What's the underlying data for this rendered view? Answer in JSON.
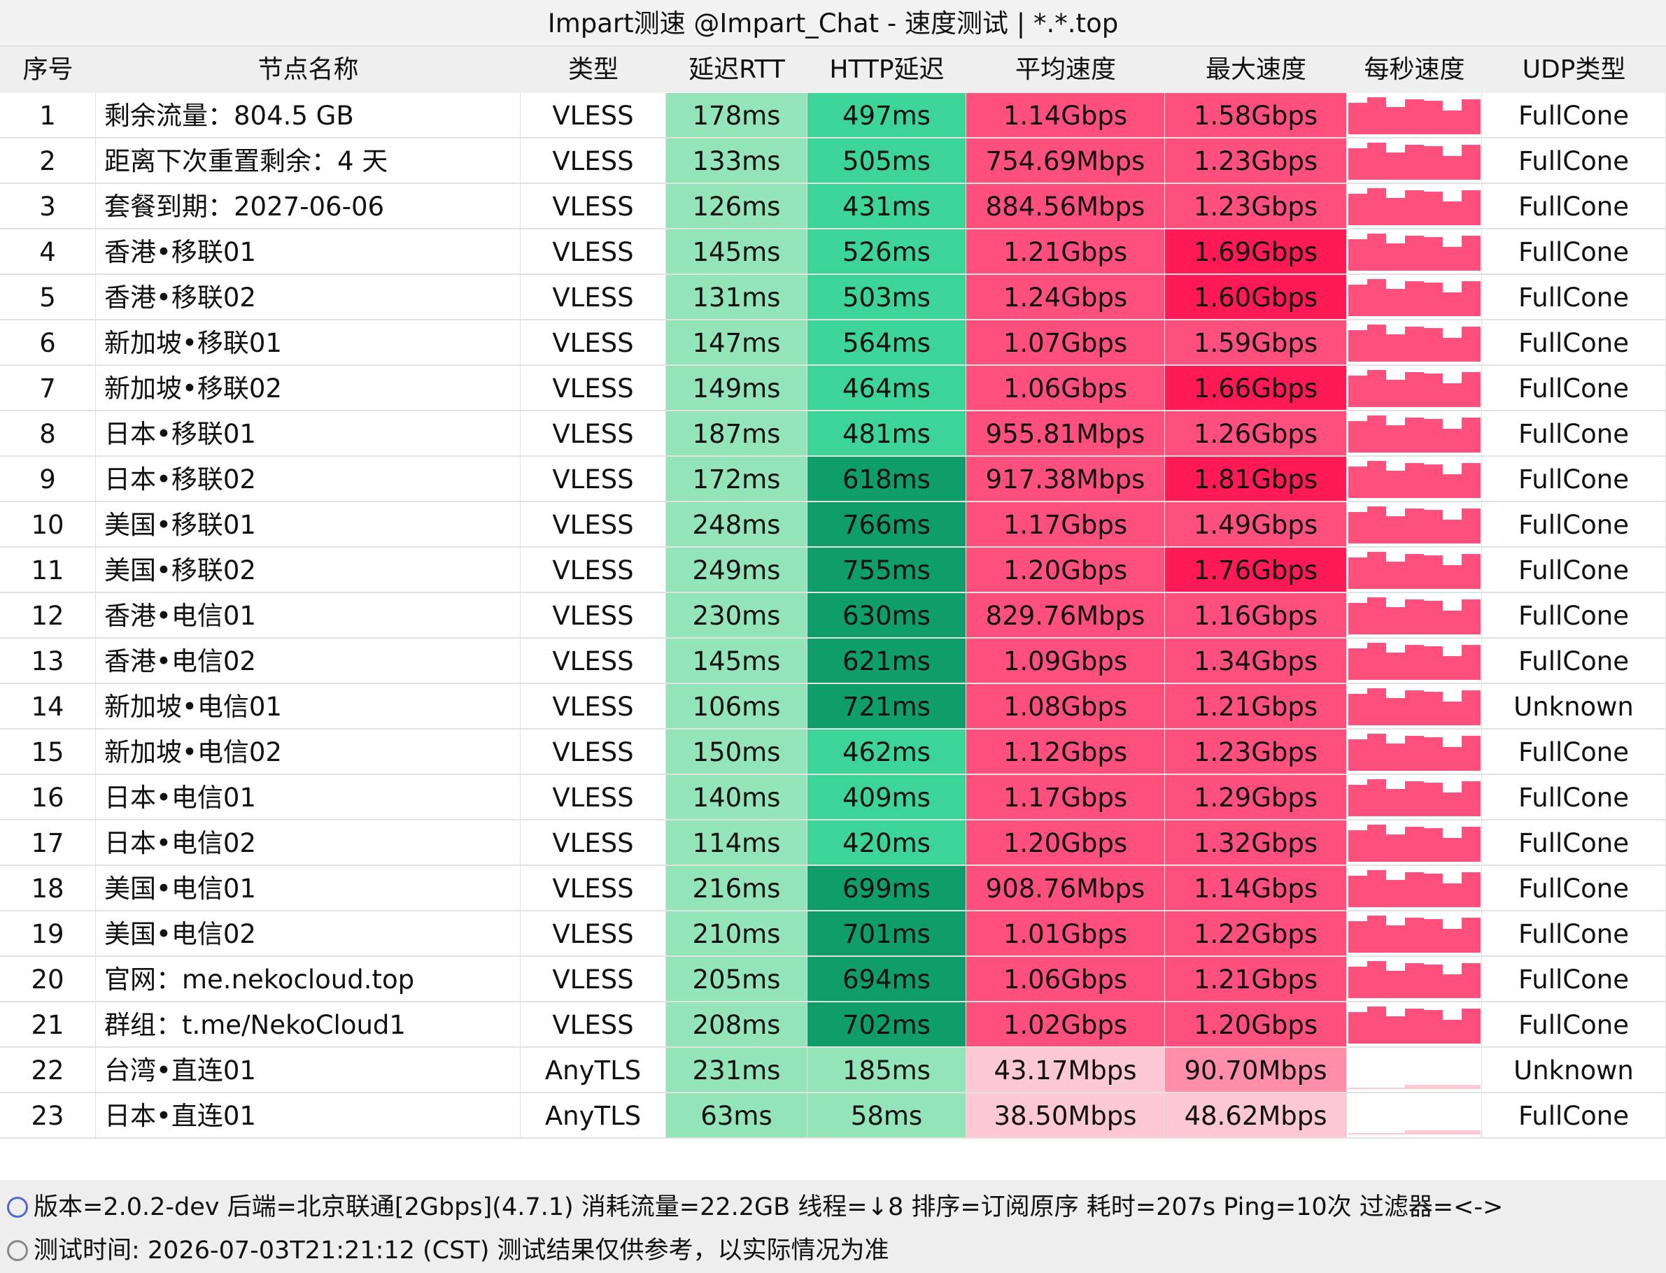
{
  "header": {
    "title": "Impart测速 @Impart_Chat - 速度测试 | *.*.top"
  },
  "table": {
    "columns": [
      "序号",
      "节点名称",
      "类型",
      "延迟RTT",
      "HTTP延迟",
      "平均速度",
      "最大速度",
      "每秒速度",
      "UDP类型"
    ],
    "rows": [
      {
        "cells": [
          "1",
          "剩余流量：804.5 GB",
          "VLESS",
          "178ms",
          "497ms",
          "1.14Gbps",
          "1.58Gbps",
          "FullCone"
        ],
        "fills": [
          "#94e4b9",
          "#3cd597",
          "#ff4f7d",
          "#ff4f7d"
        ]
      },
      {
        "cells": [
          "2",
          "距离下次重置剩余：4 天",
          "VLESS",
          "133ms",
          "505ms",
          "754.69Mbps",
          "1.23Gbps",
          "FullCone"
        ],
        "fills": [
          "#94e4b9",
          "#3cd597",
          "#ff4f7d",
          "#ff4f7d"
        ]
      },
      {
        "cells": [
          "3",
          "套餐到期：2027-06-06",
          "VLESS",
          "126ms",
          "431ms",
          "884.56Mbps",
          "1.23Gbps",
          "FullCone"
        ],
        "fills": [
          "#94e4b9",
          "#3cd597",
          "#ff4f7d",
          "#ff4f7d"
        ]
      },
      {
        "cells": [
          "4",
          "香港•移联01",
          "VLESS",
          "145ms",
          "526ms",
          "1.21Gbps",
          "1.69Gbps",
          "FullCone"
        ],
        "fills": [
          "#94e4b9",
          "#3cd597",
          "#ff4f7d",
          "#ff1a56"
        ]
      },
      {
        "cells": [
          "5",
          "香港•移联02",
          "VLESS",
          "131ms",
          "503ms",
          "1.24Gbps",
          "1.60Gbps",
          "FullCone"
        ],
        "fills": [
          "#94e4b9",
          "#3cd597",
          "#ff4f7d",
          "#ff1a56"
        ]
      },
      {
        "cells": [
          "6",
          "新加坡•移联01",
          "VLESS",
          "147ms",
          "564ms",
          "1.07Gbps",
          "1.59Gbps",
          "FullCone"
        ],
        "fills": [
          "#94e4b9",
          "#3cd597",
          "#ff4f7d",
          "#ff4f7d"
        ]
      },
      {
        "cells": [
          "7",
          "新加坡•移联02",
          "VLESS",
          "149ms",
          "464ms",
          "1.06Gbps",
          "1.66Gbps",
          "FullCone"
        ],
        "fills": [
          "#94e4b9",
          "#3cd597",
          "#ff4f7d",
          "#ff1a56"
        ]
      },
      {
        "cells": [
          "8",
          "日本•移联01",
          "VLESS",
          "187ms",
          "481ms",
          "955.81Mbps",
          "1.26Gbps",
          "FullCone"
        ],
        "fills": [
          "#94e4b9",
          "#3cd597",
          "#ff4f7d",
          "#ff4f7d"
        ]
      },
      {
        "cells": [
          "9",
          "日本•移联02",
          "VLESS",
          "172ms",
          "618ms",
          "917.38Mbps",
          "1.81Gbps",
          "FullCone"
        ],
        "fills": [
          "#94e4b9",
          "#0f9e6b",
          "#ff4f7d",
          "#ff1a56"
        ]
      },
      {
        "cells": [
          "10",
          "美国•移联01",
          "VLESS",
          "248ms",
          "766ms",
          "1.17Gbps",
          "1.49Gbps",
          "FullCone"
        ],
        "fills": [
          "#94e4b9",
          "#0f9e6b",
          "#ff4f7d",
          "#ff4f7d"
        ]
      },
      {
        "cells": [
          "11",
          "美国•移联02",
          "VLESS",
          "249ms",
          "755ms",
          "1.20Gbps",
          "1.76Gbps",
          "FullCone"
        ],
        "fills": [
          "#94e4b9",
          "#0f9e6b",
          "#ff4f7d",
          "#ff1a56"
        ]
      },
      {
        "cells": [
          "12",
          "香港•电信01",
          "VLESS",
          "230ms",
          "630ms",
          "829.76Mbps",
          "1.16Gbps",
          "FullCone"
        ],
        "fills": [
          "#94e4b9",
          "#0f9e6b",
          "#ff4f7d",
          "#ff4f7d"
        ]
      },
      {
        "cells": [
          "13",
          "香港•电信02",
          "VLESS",
          "145ms",
          "621ms",
          "1.09Gbps",
          "1.34Gbps",
          "FullCone"
        ],
        "fills": [
          "#94e4b9",
          "#0f9e6b",
          "#ff4f7d",
          "#ff4f7d"
        ]
      },
      {
        "cells": [
          "14",
          "新加坡•电信01",
          "VLESS",
          "106ms",
          "721ms",
          "1.08Gbps",
          "1.21Gbps",
          "Unknown"
        ],
        "fills": [
          "#94e4b9",
          "#0f9e6b",
          "#ff4f7d",
          "#ff4f7d"
        ]
      },
      {
        "cells": [
          "15",
          "新加坡•电信02",
          "VLESS",
          "150ms",
          "462ms",
          "1.12Gbps",
          "1.23Gbps",
          "FullCone"
        ],
        "fills": [
          "#94e4b9",
          "#3cd597",
          "#ff4f7d",
          "#ff4f7d"
        ]
      },
      {
        "cells": [
          "16",
          "日本•电信01",
          "VLESS",
          "140ms",
          "409ms",
          "1.17Gbps",
          "1.29Gbps",
          "FullCone"
        ],
        "fills": [
          "#94e4b9",
          "#3cd597",
          "#ff4f7d",
          "#ff4f7d"
        ]
      },
      {
        "cells": [
          "17",
          "日本•电信02",
          "VLESS",
          "114ms",
          "420ms",
          "1.20Gbps",
          "1.32Gbps",
          "FullCone"
        ],
        "fills": [
          "#94e4b9",
          "#3cd597",
          "#ff4f7d",
          "#ff4f7d"
        ]
      },
      {
        "cells": [
          "18",
          "美国•电信01",
          "VLESS",
          "216ms",
          "699ms",
          "908.76Mbps",
          "1.14Gbps",
          "FullCone"
        ],
        "fills": [
          "#94e4b9",
          "#0f9e6b",
          "#ff4f7d",
          "#ff4f7d"
        ]
      },
      {
        "cells": [
          "19",
          "美国•电信02",
          "VLESS",
          "210ms",
          "701ms",
          "1.01Gbps",
          "1.22Gbps",
          "FullCone"
        ],
        "fills": [
          "#94e4b9",
          "#0f9e6b",
          "#ff4f7d",
          "#ff4f7d"
        ]
      },
      {
        "cells": [
          "20",
          "官网：me.nekocloud.top",
          "VLESS",
          "205ms",
          "694ms",
          "1.06Gbps",
          "1.21Gbps",
          "FullCone"
        ],
        "fills": [
          "#94e4b9",
          "#0f9e6b",
          "#ff4f7d",
          "#ff4f7d"
        ]
      },
      {
        "cells": [
          "21",
          "群组：t.me/NekoCloud1",
          "VLESS",
          "208ms",
          "702ms",
          "1.02Gbps",
          "1.20Gbps",
          "FullCone"
        ],
        "fills": [
          "#94e4b9",
          "#0f9e6b",
          "#ff4f7d",
          "#ff4f7d"
        ]
      },
      {
        "cells": [
          "22",
          "台湾•直连01",
          "AnyTLS",
          "231ms",
          "185ms",
          "43.17Mbps",
          "90.70Mbps",
          "Unknown"
        ],
        "fills": [
          "#94e4b9",
          "#94e4b9",
          "#fbc8d3",
          "#ff8fa8"
        ]
      },
      {
        "cells": [
          "23",
          "日本•直连01",
          "AnyTLS",
          "63ms",
          "58ms",
          "38.50Mbps",
          "48.62Mbps",
          "FullCone"
        ],
        "fills": [
          "#94e4b9",
          "#94e4b9",
          "#fbc8d3",
          "#fbc8d3"
        ]
      }
    ]
  },
  "footer": {
    "lines": [
      "版本=2.0.2-dev  后端=北京联通[2Gbps](4.7.1) 消耗流量=22.2GB  线程=↓8  排序=订阅原序  耗时=207s  Ping=10次  过滤器=<->",
      "测试时间: 2026-07-03T21:21:12 (CST)  测试结果仅供参考，以实际情况为准"
    ]
  }
}
